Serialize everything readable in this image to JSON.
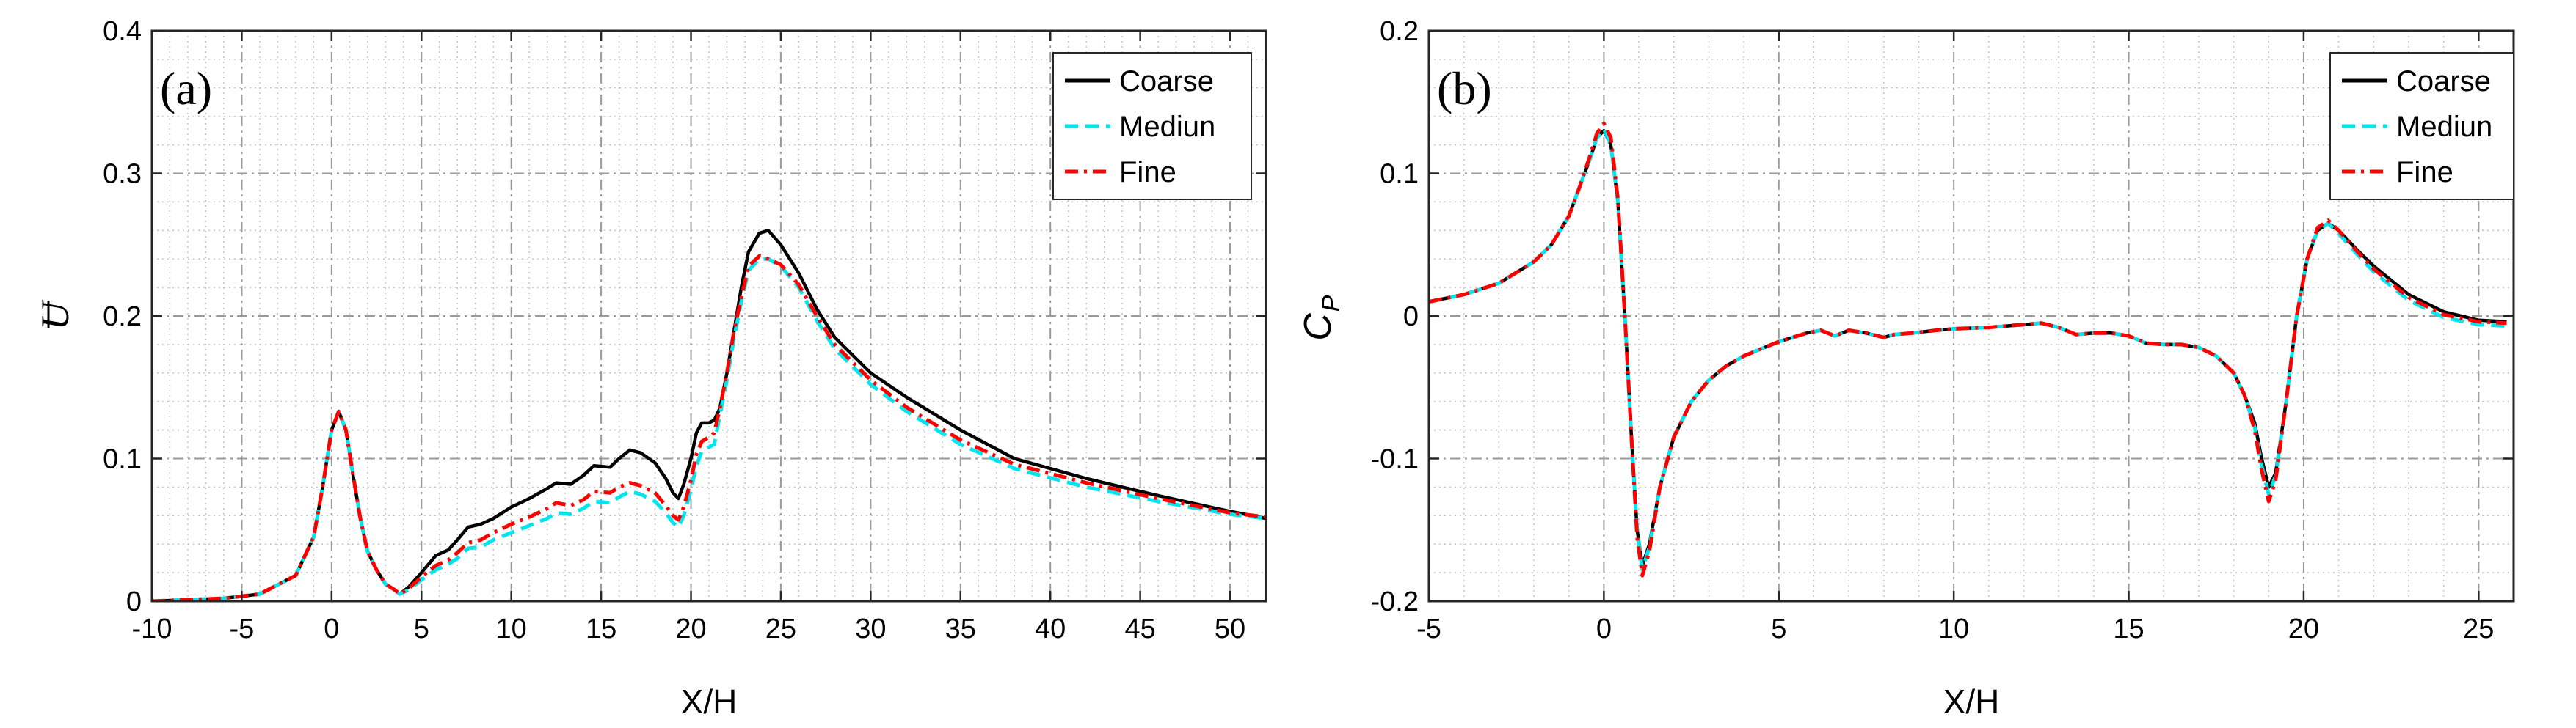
{
  "chart_data": [
    {
      "type": "line",
      "panel_label": "(a)",
      "xlabel": "X/H",
      "ylabel": "U",
      "xlim": [
        -10,
        52
      ],
      "ylim": [
        0,
        0.4
      ],
      "xticks": [
        -10,
        -5,
        0,
        5,
        10,
        15,
        20,
        25,
        30,
        35,
        40,
        45,
        50
      ],
      "yticks": [
        0,
        0.1,
        0.2,
        0.3,
        0.4
      ],
      "xtick_labels": [
        "-10",
        "-5",
        "0",
        "5",
        "10",
        "15",
        "20",
        "25",
        "30",
        "35",
        "40",
        "45",
        "50"
      ],
      "ytick_labels": [
        "0",
        "0.1",
        "0.2",
        "0.3",
        "0.4"
      ],
      "grid": true,
      "legend": "top-right",
      "series": [
        {
          "name": "Coarse",
          "color": "#000000",
          "dash": "solid",
          "x": [
            -10,
            -6,
            -4,
            -2,
            -1,
            -0.5,
            0,
            0.4,
            0.8,
            1.2,
            1.6,
            2,
            2.5,
            3,
            3.5,
            3.8,
            4.3,
            5,
            5.8,
            6.5,
            7,
            7.6,
            8.3,
            9,
            10,
            11,
            12,
            12.5,
            13.3,
            14,
            14.6,
            15.5,
            16,
            16.6,
            17.2,
            18,
            18.6,
            19,
            19.3,
            19.6,
            20,
            20.3,
            20.6,
            21,
            21.3,
            21.6,
            22,
            22.4,
            22.8,
            23.2,
            23.8,
            24.3,
            25,
            26,
            27,
            28,
            30,
            32,
            35,
            38,
            42,
            46,
            50,
            52
          ],
          "y": [
            0.0,
            0.002,
            0.005,
            0.018,
            0.045,
            0.08,
            0.12,
            0.133,
            0.12,
            0.088,
            0.058,
            0.035,
            0.022,
            0.012,
            0.008,
            0.005,
            0.01,
            0.02,
            0.032,
            0.036,
            0.043,
            0.052,
            0.054,
            0.058,
            0.066,
            0.072,
            0.079,
            0.083,
            0.082,
            0.088,
            0.095,
            0.094,
            0.1,
            0.106,
            0.104,
            0.097,
            0.086,
            0.076,
            0.072,
            0.082,
            0.1,
            0.118,
            0.125,
            0.125,
            0.127,
            0.135,
            0.16,
            0.19,
            0.22,
            0.245,
            0.258,
            0.26,
            0.25,
            0.23,
            0.205,
            0.185,
            0.16,
            0.143,
            0.12,
            0.1,
            0.086,
            0.074,
            0.063,
            0.058
          ]
        },
        {
          "name": "Mediun",
          "color": "#00e5ee",
          "dash": "dashed",
          "x": [
            -10,
            -6,
            -4,
            -2,
            -1,
            -0.5,
            0,
            0.4,
            0.8,
            1.2,
            1.6,
            2,
            2.5,
            3,
            3.5,
            3.8,
            4.3,
            5,
            5.8,
            6.5,
            7,
            7.6,
            8.3,
            9,
            10,
            11,
            12,
            12.5,
            13.3,
            14,
            14.6,
            15.5,
            16,
            16.6,
            17.2,
            18,
            18.6,
            19,
            19.3,
            19.6,
            20,
            20.3,
            20.6,
            21,
            21.3,
            21.6,
            22,
            22.4,
            22.8,
            23.2,
            23.8,
            24.3,
            25,
            26,
            27,
            28,
            30,
            32,
            35,
            38,
            42,
            46,
            50,
            52
          ],
          "y": [
            0.0,
            0.002,
            0.005,
            0.018,
            0.045,
            0.08,
            0.12,
            0.133,
            0.12,
            0.088,
            0.058,
            0.035,
            0.022,
            0.012,
            0.008,
            0.005,
            0.008,
            0.015,
            0.022,
            0.026,
            0.03,
            0.037,
            0.038,
            0.043,
            0.048,
            0.053,
            0.058,
            0.062,
            0.061,
            0.065,
            0.07,
            0.069,
            0.073,
            0.077,
            0.075,
            0.07,
            0.062,
            0.055,
            0.052,
            0.06,
            0.078,
            0.095,
            0.105,
            0.108,
            0.11,
            0.13,
            0.155,
            0.185,
            0.21,
            0.232,
            0.24,
            0.24,
            0.235,
            0.22,
            0.197,
            0.177,
            0.152,
            0.133,
            0.11,
            0.093,
            0.08,
            0.07,
            0.061,
            0.058
          ]
        },
        {
          "name": "Fine",
          "color": "#ff0000",
          "dash": "dashdot",
          "x": [
            -10,
            -6,
            -4,
            -2,
            -1,
            -0.5,
            0,
            0.4,
            0.8,
            1.2,
            1.6,
            2,
            2.5,
            3,
            3.5,
            3.8,
            4.3,
            5,
            5.8,
            6.5,
            7,
            7.6,
            8.3,
            9,
            10,
            11,
            12,
            12.5,
            13.3,
            14,
            14.6,
            15.5,
            16,
            16.6,
            17.2,
            18,
            18.6,
            19,
            19.3,
            19.6,
            20,
            20.3,
            20.6,
            21,
            21.3,
            21.6,
            22,
            22.4,
            22.8,
            23.2,
            23.8,
            24.3,
            25,
            26,
            27,
            28,
            30,
            32,
            35,
            38,
            42,
            46,
            50,
            52
          ],
          "y": [
            0.0,
            0.002,
            0.005,
            0.018,
            0.045,
            0.08,
            0.12,
            0.133,
            0.12,
            0.088,
            0.058,
            0.035,
            0.022,
            0.012,
            0.008,
            0.005,
            0.009,
            0.017,
            0.025,
            0.029,
            0.034,
            0.041,
            0.043,
            0.048,
            0.054,
            0.059,
            0.065,
            0.069,
            0.067,
            0.071,
            0.077,
            0.076,
            0.08,
            0.083,
            0.081,
            0.076,
            0.067,
            0.06,
            0.057,
            0.066,
            0.085,
            0.103,
            0.112,
            0.115,
            0.118,
            0.135,
            0.16,
            0.19,
            0.213,
            0.235,
            0.242,
            0.24,
            0.236,
            0.222,
            0.2,
            0.18,
            0.155,
            0.136,
            0.113,
            0.096,
            0.083,
            0.072,
            0.062,
            0.059
          ]
        }
      ]
    },
    {
      "type": "line",
      "panel_label": "(b)",
      "xlabel": "X/H",
      "ylabel": "C",
      "ylabel_sub": "P",
      "xlim": [
        -5,
        26
      ],
      "ylim": [
        -0.2,
        0.2
      ],
      "xticks": [
        -5,
        0,
        5,
        10,
        15,
        20,
        25
      ],
      "yticks": [
        -0.2,
        -0.1,
        0,
        0.1,
        0.2
      ],
      "xtick_labels": [
        "-5",
        "0",
        "5",
        "10",
        "15",
        "20",
        "25"
      ],
      "ytick_labels": [
        "-0.2",
        "-0.1",
        "0",
        "0.1",
        "0.2"
      ],
      "grid": true,
      "legend": "top-right",
      "series": [
        {
          "name": "Coarse",
          "color": "#000000",
          "dash": "solid",
          "x": [
            -5,
            -4,
            -3,
            -2,
            -1.5,
            -1,
            -0.7,
            -0.4,
            -0.2,
            0,
            0.2,
            0.4,
            0.6,
            0.8,
            0.95,
            1.1,
            1.3,
            1.6,
            2,
            2.5,
            3,
            3.5,
            4,
            5,
            5.8,
            6.2,
            6.6,
            7,
            7.5,
            8,
            8.3,
            8.8,
            9.5,
            10,
            11,
            12,
            12.5,
            13,
            13.5,
            14,
            14.5,
            15,
            15.5,
            16,
            16.5,
            17,
            17.5,
            18,
            18.3,
            18.6,
            18.8,
            19,
            19.2,
            19.5,
            19.8,
            20.1,
            20.4,
            20.7,
            21,
            21.5,
            22,
            23,
            24,
            25,
            25.8
          ],
          "y": [
            0.01,
            0.015,
            0.023,
            0.038,
            0.05,
            0.07,
            0.09,
            0.11,
            0.125,
            0.13,
            0.12,
            0.08,
            0.0,
            -0.09,
            -0.15,
            -0.175,
            -0.16,
            -0.12,
            -0.085,
            -0.06,
            -0.045,
            -0.035,
            -0.028,
            -0.018,
            -0.012,
            -0.01,
            -0.014,
            -0.01,
            -0.012,
            -0.015,
            -0.013,
            -0.012,
            -0.01,
            -0.009,
            -0.008,
            -0.006,
            -0.005,
            -0.008,
            -0.013,
            -0.012,
            -0.012,
            -0.014,
            -0.019,
            -0.02,
            -0.02,
            -0.022,
            -0.028,
            -0.04,
            -0.055,
            -0.075,
            -0.1,
            -0.12,
            -0.11,
            -0.06,
            0.0,
            0.04,
            0.06,
            0.065,
            0.06,
            0.047,
            0.035,
            0.015,
            0.003,
            -0.003,
            -0.004
          ]
        },
        {
          "name": "Mediun",
          "color": "#00e5ee",
          "dash": "dashed",
          "x": [
            -5,
            -4,
            -3,
            -2,
            -1.5,
            -1,
            -0.7,
            -0.4,
            -0.2,
            0,
            0.2,
            0.4,
            0.6,
            0.8,
            0.95,
            1.1,
            1.3,
            1.6,
            2,
            2.5,
            3,
            3.5,
            4,
            5,
            5.8,
            6.2,
            6.6,
            7,
            7.5,
            8,
            8.3,
            8.8,
            9.5,
            10,
            11,
            12,
            12.5,
            13,
            13.5,
            14,
            14.5,
            15,
            15.5,
            16,
            16.5,
            17,
            17.5,
            18,
            18.3,
            18.6,
            18.8,
            19,
            19.2,
            19.5,
            19.8,
            20.1,
            20.4,
            20.7,
            21,
            21.5,
            22,
            23,
            24,
            25,
            25.8
          ],
          "y": [
            0.01,
            0.015,
            0.023,
            0.038,
            0.05,
            0.07,
            0.09,
            0.11,
            0.125,
            0.131,
            0.12,
            0.08,
            0.0,
            -0.09,
            -0.15,
            -0.178,
            -0.162,
            -0.12,
            -0.085,
            -0.06,
            -0.045,
            -0.035,
            -0.028,
            -0.018,
            -0.012,
            -0.01,
            -0.014,
            -0.01,
            -0.012,
            -0.015,
            -0.013,
            -0.012,
            -0.01,
            -0.009,
            -0.008,
            -0.006,
            -0.005,
            -0.008,
            -0.013,
            -0.012,
            -0.012,
            -0.014,
            -0.019,
            -0.02,
            -0.02,
            -0.022,
            -0.028,
            -0.04,
            -0.055,
            -0.078,
            -0.105,
            -0.125,
            -0.112,
            -0.06,
            0.0,
            0.04,
            0.06,
            0.065,
            0.058,
            0.044,
            0.031,
            0.011,
            -0.001,
            -0.006,
            -0.007
          ]
        },
        {
          "name": "Fine",
          "color": "#ff0000",
          "dash": "dashdot",
          "x": [
            -5,
            -4,
            -3,
            -2,
            -1.5,
            -1,
            -0.7,
            -0.4,
            -0.2,
            0,
            0.2,
            0.4,
            0.6,
            0.8,
            0.95,
            1.1,
            1.3,
            1.6,
            2,
            2.5,
            3,
            3.5,
            4,
            5,
            5.8,
            6.2,
            6.6,
            7,
            7.5,
            8,
            8.3,
            8.8,
            9.5,
            10,
            11,
            12,
            12.5,
            13,
            13.5,
            14,
            14.5,
            15,
            15.5,
            16,
            16.5,
            17,
            17.5,
            18,
            18.3,
            18.6,
            18.8,
            19,
            19.2,
            19.5,
            19.8,
            20.1,
            20.4,
            20.7,
            21,
            21.5,
            22,
            23,
            24,
            25,
            25.8
          ],
          "y": [
            0.01,
            0.015,
            0.023,
            0.038,
            0.05,
            0.07,
            0.09,
            0.112,
            0.128,
            0.135,
            0.125,
            0.082,
            0.0,
            -0.09,
            -0.155,
            -0.182,
            -0.165,
            -0.12,
            -0.085,
            -0.06,
            -0.045,
            -0.035,
            -0.028,
            -0.018,
            -0.012,
            -0.01,
            -0.014,
            -0.01,
            -0.012,
            -0.015,
            -0.013,
            -0.012,
            -0.01,
            -0.009,
            -0.008,
            -0.006,
            -0.005,
            -0.008,
            -0.013,
            -0.012,
            -0.012,
            -0.014,
            -0.019,
            -0.02,
            -0.02,
            -0.022,
            -0.028,
            -0.04,
            -0.055,
            -0.08,
            -0.108,
            -0.13,
            -0.115,
            -0.06,
            0.0,
            0.04,
            0.062,
            0.067,
            0.06,
            0.046,
            0.033,
            0.013,
            0.001,
            -0.004,
            -0.005
          ]
        }
      ]
    }
  ]
}
